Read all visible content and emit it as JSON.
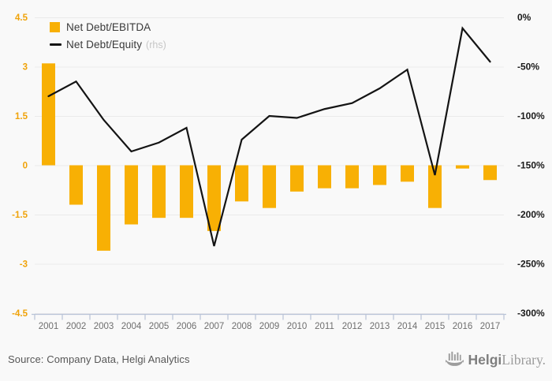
{
  "legend": {
    "items": [
      {
        "label": "Net Debt/EBITDA",
        "swatch_color": "#f8b004"
      },
      {
        "label": "Net Debt/Equity",
        "suffix": "(rhs)",
        "line_color": "#141414"
      }
    ]
  },
  "footer": {
    "source": "Source: Company Data, Helgi Analytics",
    "logo": {
      "icon": "viking-ship-bar-chart-icon",
      "brand_bold": "Helgi",
      "brand_light": "Library."
    }
  },
  "colors": {
    "background": "#f9f9f9",
    "bar": "#f8b004",
    "line": "#141414",
    "left_axis_labels": "#f0a30a",
    "right_axis_labels": "#1a1a1a",
    "year_labels": "#6e6e6e",
    "gridline": "#eaeaea",
    "axis_line": "#b9c3d7"
  },
  "chart_data": {
    "type": "bar",
    "title": "",
    "categories": [
      "2001",
      "2002",
      "2003",
      "2004",
      "2005",
      "2006",
      "2007",
      "2008",
      "2009",
      "2010",
      "2011",
      "2012",
      "2013",
      "2014",
      "2015",
      "2016",
      "2017"
    ],
    "series": [
      {
        "name": "Net Debt/EBITDA",
        "type": "bar",
        "axis": "left",
        "values": [
          3.1,
          -1.2,
          -2.6,
          -1.8,
          -1.6,
          -1.6,
          -2.0,
          -1.1,
          -1.3,
          -0.8,
          -0.7,
          -0.7,
          -0.6,
          -0.5,
          -1.3,
          -0.1,
          -0.45
        ]
      },
      {
        "name": "Net Debt/Equity (rhs)",
        "type": "line",
        "axis": "right",
        "values": [
          -80,
          -65,
          -104,
          -136,
          -127,
          -112,
          -232,
          -124,
          -100,
          -102,
          -93,
          -87,
          -72,
          -53,
          -160,
          -11,
          -45
        ]
      }
    ],
    "left_axis": {
      "min": -4.5,
      "max": 4.5,
      "tick_labels": [
        "4.5",
        "3",
        "1.5",
        "0",
        "-1.5",
        "-3",
        "-4.5"
      ],
      "tick_values": [
        4.5,
        3,
        1.5,
        0,
        -1.5,
        -3,
        -4.5
      ]
    },
    "right_axis": {
      "min": -300,
      "max": 0,
      "tick_labels": [
        "0%",
        "-50%",
        "-100%",
        "-150%",
        "-200%",
        "-250%",
        "-300%"
      ],
      "tick_values": [
        0,
        -50,
        -100,
        -150,
        -200,
        -250,
        -300
      ]
    },
    "grid": true,
    "legend_position": "top-left",
    "xlabel": "",
    "ylabel": ""
  }
}
